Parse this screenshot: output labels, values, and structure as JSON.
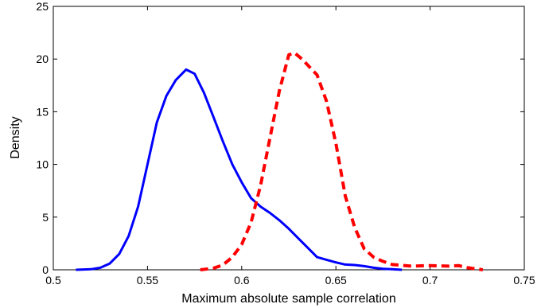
{
  "chart_data": {
    "type": "line",
    "title": "",
    "xlabel": "Maximum absolute sample correlation",
    "ylabel": "Density",
    "xlim": [
      0.5,
      0.75
    ],
    "ylim": [
      0,
      25
    ],
    "xticks": [
      "0.5",
      "0.55",
      "0.6",
      "0.65",
      "0.7",
      "0.75"
    ],
    "yticks": [
      "0",
      "5",
      "10",
      "15",
      "20",
      "25"
    ],
    "grid": false,
    "legend": "none",
    "series": [
      {
        "style": "solid",
        "color": "#0000ff",
        "points": [
          [
            0.512,
            0.0
          ],
          [
            0.52,
            0.05
          ],
          [
            0.525,
            0.2
          ],
          [
            0.53,
            0.6
          ],
          [
            0.535,
            1.5
          ],
          [
            0.54,
            3.2
          ],
          [
            0.545,
            6.0
          ],
          [
            0.55,
            10.0
          ],
          [
            0.555,
            14.0
          ],
          [
            0.56,
            16.5
          ],
          [
            0.565,
            18.0
          ],
          [
            0.5705,
            19.0
          ],
          [
            0.575,
            18.6
          ],
          [
            0.58,
            16.8
          ],
          [
            0.585,
            14.5
          ],
          [
            0.59,
            12.2
          ],
          [
            0.595,
            10.0
          ],
          [
            0.6,
            8.3
          ],
          [
            0.605,
            6.8
          ],
          [
            0.61,
            6.0
          ],
          [
            0.615,
            5.4
          ],
          [
            0.62,
            4.7
          ],
          [
            0.625,
            3.9
          ],
          [
            0.63,
            3.0
          ],
          [
            0.635,
            2.1
          ],
          [
            0.64,
            1.2
          ],
          [
            0.645,
            0.95
          ],
          [
            0.65,
            0.7
          ],
          [
            0.655,
            0.5
          ],
          [
            0.66,
            0.45
          ],
          [
            0.665,
            0.35
          ],
          [
            0.67,
            0.2
          ],
          [
            0.675,
            0.1
          ],
          [
            0.68,
            0.05
          ],
          [
            0.685,
            0.0
          ]
        ]
      },
      {
        "style": "dashed",
        "color": "#ff0000",
        "points": [
          [
            0.578,
            0.0
          ],
          [
            0.585,
            0.15
          ],
          [
            0.59,
            0.45
          ],
          [
            0.595,
            1.2
          ],
          [
            0.6,
            2.4
          ],
          [
            0.605,
            4.5
          ],
          [
            0.61,
            8.0
          ],
          [
            0.615,
            12.5
          ],
          [
            0.62,
            17.0
          ],
          [
            0.625,
            20.4
          ],
          [
            0.628,
            20.6
          ],
          [
            0.632,
            20.0
          ],
          [
            0.64,
            18.5
          ],
          [
            0.645,
            16.0
          ],
          [
            0.65,
            12.0
          ],
          [
            0.655,
            7.0
          ],
          [
            0.66,
            4.0
          ],
          [
            0.665,
            2.0
          ],
          [
            0.67,
            1.2
          ],
          [
            0.675,
            0.8
          ],
          [
            0.68,
            0.5
          ],
          [
            0.69,
            0.35
          ],
          [
            0.7,
            0.4
          ],
          [
            0.71,
            0.35
          ],
          [
            0.715,
            0.4
          ],
          [
            0.72,
            0.2
          ],
          [
            0.728,
            0.0
          ]
        ]
      }
    ]
  }
}
